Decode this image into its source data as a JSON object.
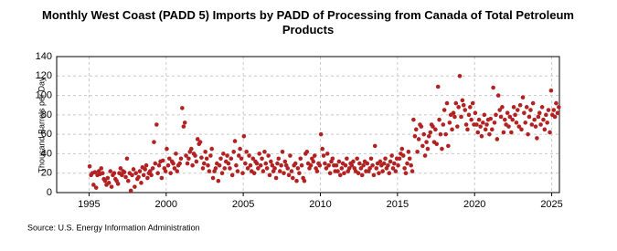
{
  "chart_data": {
    "type": "scatter",
    "title": "Monthly West Coast (PADD 5) Imports by PADD of Processing from Canada of Total Petroleum Products",
    "y_label": "Thousand Barrels per Day",
    "source": "Source: U.S. Energy Information Administration",
    "color": "#b22222",
    "grid": true,
    "xlim": [
      1992.9,
      2025.5
    ],
    "xticks": [
      1995,
      2000,
      2005,
      2010,
      2015,
      2020,
      2025
    ],
    "ylim": [
      0,
      140
    ],
    "yticks": [
      0,
      20,
      40,
      60,
      80,
      100,
      120,
      140
    ],
    "x": [
      1995.04,
      1995.13,
      1995.21,
      1995.29,
      1995.38,
      1995.46,
      1995.54,
      1995.63,
      1995.71,
      1995.79,
      1995.88,
      1995.96,
      1996.04,
      1996.13,
      1996.21,
      1996.29,
      1996.38,
      1996.46,
      1996.54,
      1996.63,
      1996.71,
      1996.79,
      1996.88,
      1996.96,
      1997.04,
      1997.13,
      1997.21,
      1997.29,
      1997.38,
      1997.46,
      1997.54,
      1997.63,
      1997.71,
      1997.79,
      1997.88,
      1997.96,
      1998.04,
      1998.13,
      1998.21,
      1998.29,
      1998.38,
      1998.46,
      1998.54,
      1998.63,
      1998.71,
      1998.79,
      1998.88,
      1998.96,
      1999.04,
      1999.13,
      1999.21,
      1999.29,
      1999.38,
      1999.46,
      1999.54,
      1999.63,
      1999.71,
      1999.79,
      1999.88,
      1999.96,
      2000.04,
      2000.13,
      2000.21,
      2000.29,
      2000.38,
      2000.46,
      2000.54,
      2000.63,
      2000.71,
      2000.79,
      2000.88,
      2000.96,
      2001.04,
      2001.13,
      2001.21,
      2001.29,
      2001.38,
      2001.46,
      2001.54,
      2001.63,
      2001.71,
      2001.79,
      2001.88,
      2001.96,
      2002.04,
      2002.13,
      2002.21,
      2002.29,
      2002.38,
      2002.46,
      2002.54,
      2002.63,
      2002.71,
      2002.79,
      2002.88,
      2002.96,
      2003.04,
      2003.13,
      2003.21,
      2003.29,
      2003.38,
      2003.46,
      2003.54,
      2003.63,
      2003.71,
      2003.79,
      2003.88,
      2003.96,
      2004.04,
      2004.13,
      2004.21,
      2004.29,
      2004.38,
      2004.46,
      2004.54,
      2004.63,
      2004.71,
      2004.79,
      2004.88,
      2004.96,
      2005.04,
      2005.13,
      2005.21,
      2005.29,
      2005.38,
      2005.46,
      2005.54,
      2005.63,
      2005.71,
      2005.79,
      2005.88,
      2005.96,
      2006.04,
      2006.13,
      2006.21,
      2006.29,
      2006.38,
      2006.46,
      2006.54,
      2006.63,
      2006.71,
      2006.79,
      2006.88,
      2006.96,
      2007.04,
      2007.13,
      2007.21,
      2007.29,
      2007.38,
      2007.46,
      2007.54,
      2007.63,
      2007.71,
      2007.79,
      2007.88,
      2007.96,
      2008.04,
      2008.13,
      2008.21,
      2008.29,
      2008.38,
      2008.46,
      2008.54,
      2008.63,
      2008.71,
      2008.79,
      2008.88,
      2008.96,
      2009.04,
      2009.13,
      2009.21,
      2009.29,
      2009.38,
      2009.46,
      2009.54,
      2009.63,
      2009.71,
      2009.79,
      2009.88,
      2009.96,
      2010.04,
      2010.13,
      2010.21,
      2010.29,
      2010.38,
      2010.46,
      2010.54,
      2010.63,
      2010.71,
      2010.79,
      2010.88,
      2010.96,
      2011.04,
      2011.13,
      2011.21,
      2011.29,
      2011.38,
      2011.46,
      2011.54,
      2011.63,
      2011.71,
      2011.79,
      2011.88,
      2011.96,
      2012.04,
      2012.13,
      2012.21,
      2012.29,
      2012.38,
      2012.46,
      2012.54,
      2012.63,
      2012.71,
      2012.79,
      2012.88,
      2012.96,
      2013.04,
      2013.13,
      2013.21,
      2013.29,
      2013.38,
      2013.46,
      2013.54,
      2013.63,
      2013.71,
      2013.79,
      2013.88,
      2013.96,
      2014.04,
      2014.13,
      2014.21,
      2014.29,
      2014.38,
      2014.46,
      2014.54,
      2014.63,
      2014.71,
      2014.79,
      2014.88,
      2014.96,
      2015.04,
      2015.13,
      2015.21,
      2015.29,
      2015.38,
      2015.46,
      2015.54,
      2015.63,
      2015.71,
      2015.79,
      2015.88,
      2015.96,
      2016.04,
      2016.13,
      2016.21,
      2016.29,
      2016.38,
      2016.46,
      2016.54,
      2016.63,
      2016.71,
      2016.79,
      2016.88,
      2016.96,
      2017.04,
      2017.13,
      2017.21,
      2017.29,
      2017.38,
      2017.46,
      2017.54,
      2017.63,
      2017.71,
      2017.79,
      2017.88,
      2017.96,
      2018.04,
      2018.13,
      2018.21,
      2018.29,
      2018.38,
      2018.46,
      2018.54,
      2018.63,
      2018.71,
      2018.79,
      2018.88,
      2018.96,
      2019.04,
      2019.13,
      2019.21,
      2019.29,
      2019.38,
      2019.46,
      2019.54,
      2019.63,
      2019.71,
      2019.79,
      2019.88,
      2019.96,
      2020.04,
      2020.13,
      2020.21,
      2020.29,
      2020.38,
      2020.46,
      2020.54,
      2020.63,
      2020.71,
      2020.79,
      2020.88,
      2020.96,
      2021.04,
      2021.13,
      2021.21,
      2021.29,
      2021.38,
      2021.46,
      2021.54,
      2021.63,
      2021.71,
      2021.79,
      2021.88,
      2021.96,
      2022.04,
      2022.13,
      2022.21,
      2022.29,
      2022.38,
      2022.46,
      2022.54,
      2022.63,
      2022.71,
      2022.79,
      2022.88,
      2022.96,
      2023.04,
      2023.13,
      2023.21,
      2023.29,
      2023.38,
      2023.46,
      2023.54,
      2023.63,
      2023.71,
      2023.79,
      2023.88,
      2023.96,
      2024.04,
      2024.13,
      2024.21,
      2024.29,
      2024.38,
      2024.46,
      2024.54,
      2024.63,
      2024.71,
      2024.79,
      2024.88,
      2024.96,
      2025.04,
      2025.13,
      2025.21,
      2025.29,
      2025.38,
      2025.46
    ],
    "values": [
      27,
      18,
      20,
      8,
      21,
      5,
      18,
      22,
      19,
      25,
      20,
      14,
      12,
      8,
      15,
      10,
      22,
      6,
      18,
      20,
      14,
      12,
      9,
      20,
      25,
      18,
      22,
      21,
      16,
      35,
      12,
      20,
      2,
      18,
      24,
      6,
      20,
      14,
      16,
      22,
      10,
      26,
      18,
      24,
      28,
      15,
      20,
      22,
      18,
      25,
      52,
      30,
      70,
      20,
      28,
      32,
      15,
      33,
      25,
      22,
      45,
      28,
      35,
      20,
      32,
      30,
      25,
      40,
      22,
      28,
      30,
      35,
      87,
      68,
      72,
      38,
      30,
      35,
      42,
      45,
      28,
      40,
      38,
      32,
      55,
      50,
      52,
      36,
      25,
      30,
      42,
      35,
      28,
      22,
      38,
      45,
      15,
      22,
      25,
      30,
      12,
      28,
      35,
      20,
      40,
      25,
      32,
      38,
      30,
      25,
      35,
      18,
      42,
      53,
      28,
      22,
      38,
      45,
      35,
      20,
      58,
      30,
      42,
      25,
      38,
      28,
      22,
      35,
      20,
      32,
      30,
      25,
      40,
      28,
      35,
      22,
      42,
      30,
      25,
      38,
      18,
      32,
      28,
      22,
      25,
      15,
      30,
      35,
      22,
      28,
      42,
      20,
      32,
      28,
      25,
      18,
      38,
      22,
      15,
      28,
      30,
      12,
      25,
      20,
      35,
      28,
      15,
      12,
      40,
      42,
      30,
      25,
      28,
      35,
      32,
      38,
      25,
      22,
      30,
      28,
      60,
      45,
      38,
      30,
      25,
      40,
      28,
      20,
      32,
      35,
      28,
      22,
      28,
      22,
      32,
      18,
      25,
      30,
      20,
      28,
      35,
      22,
      25,
      30,
      28,
      32,
      25,
      22,
      35,
      20,
      30,
      25,
      18,
      28,
      32,
      22,
      30,
      22,
      25,
      35,
      28,
      18,
      48,
      25,
      30,
      20,
      32,
      28,
      22,
      30,
      35,
      25,
      28,
      20,
      32,
      38,
      25,
      30,
      22,
      35,
      28,
      35,
      40,
      45,
      38,
      25,
      20,
      30,
      42,
      35,
      28,
      22,
      75,
      58,
      65,
      42,
      55,
      70,
      68,
      48,
      60,
      38,
      52,
      45,
      58,
      62,
      70,
      68,
      52,
      65,
      50,
      109,
      75,
      60,
      45,
      70,
      85,
      60,
      92,
      48,
      72,
      80,
      65,
      82,
      78,
      92,
      68,
      88,
      120,
      78,
      95,
      90,
      85,
      70,
      65,
      80,
      88,
      75,
      92,
      70,
      82,
      70,
      62,
      75,
      68,
      58,
      72,
      80,
      65,
      70,
      75,
      60,
      76,
      65,
      108,
      72,
      80,
      55,
      100,
      85,
      78,
      88,
      62,
      75,
      70,
      82,
      68,
      78,
      62,
      75,
      88,
      80,
      72,
      85,
      68,
      90,
      65,
      98,
      82,
      72,
      88,
      60,
      78,
      85,
      70,
      92,
      75,
      68,
      56,
      78,
      82,
      70,
      88,
      75,
      65,
      80,
      72,
      85,
      62,
      105,
      80,
      85,
      78,
      92,
      82,
      88
    ]
  }
}
